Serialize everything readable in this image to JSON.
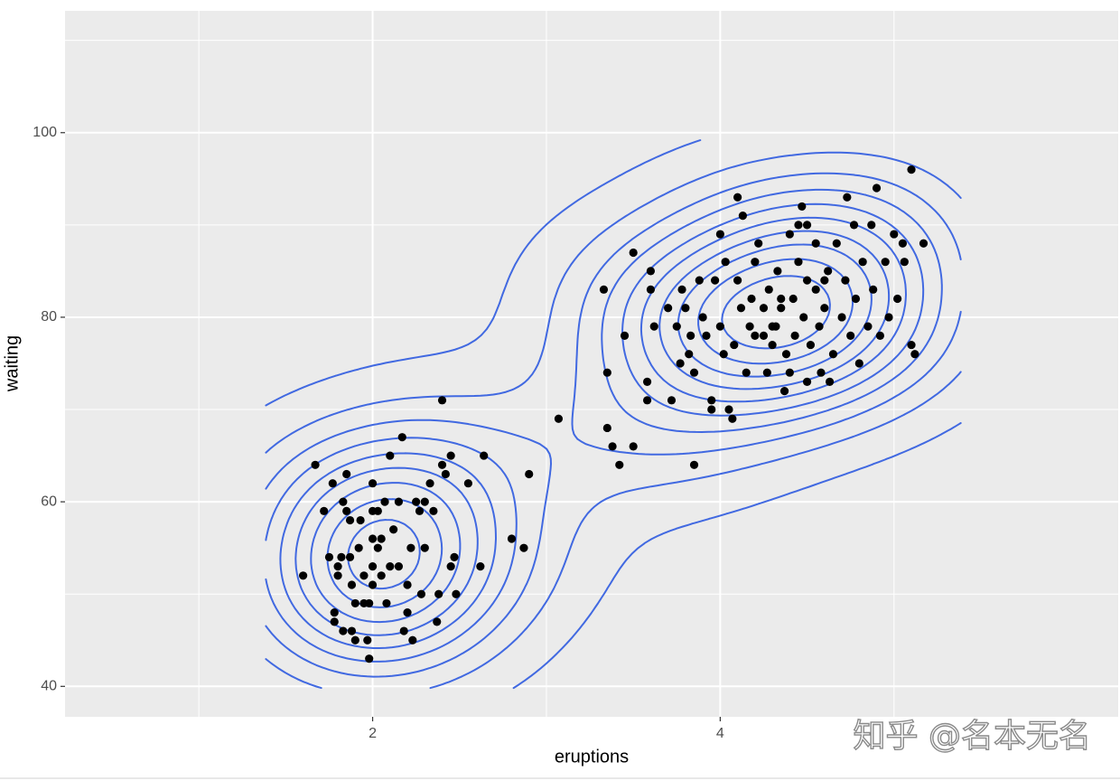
{
  "chart_data": {
    "type": "scatter",
    "xlabel": "eruptions",
    "ylabel": "waiting",
    "watermark": "知乎 @名本无名",
    "xlim": [
      0.23,
      6.29
    ],
    "ylim": [
      36.7,
      113.2
    ],
    "xticks": [
      2,
      4
    ],
    "yticks": [
      40,
      60,
      80,
      100
    ],
    "grid": true,
    "point_color": "#000000",
    "contour_color": "#4169e1",
    "x": [
      1.6,
      1.67,
      1.72,
      1.75,
      1.77,
      1.78,
      1.78,
      1.8,
      1.8,
      1.82,
      1.83,
      1.83,
      1.85,
      1.85,
      1.87,
      1.87,
      1.88,
      1.88,
      1.9,
      1.9,
      1.92,
      1.93,
      1.95,
      1.95,
      1.97,
      1.98,
      2.0,
      2.0,
      2.0,
      2.0,
      2.0,
      1.98,
      2.03,
      2.03,
      2.05,
      2.05,
      2.07,
      2.08,
      2.1,
      2.1,
      2.12,
      2.15,
      2.15,
      2.17,
      2.18,
      2.2,
      2.2,
      2.22,
      2.23,
      2.25,
      2.27,
      2.3,
      2.28,
      2.3,
      2.33,
      2.35,
      2.37,
      2.38,
      2.4,
      2.42,
      2.45,
      2.45,
      2.47,
      2.48,
      2.55,
      2.4,
      2.62,
      2.64,
      2.8,
      2.87,
      2.9,
      3.07,
      3.33,
      3.35,
      3.35,
      3.38,
      3.42,
      3.45,
      3.5,
      3.5,
      3.58,
      3.58,
      3.6,
      3.6,
      3.62,
      3.7,
      3.72,
      3.75,
      3.78,
      3.77,
      3.8,
      3.82,
      3.85,
      3.83,
      3.85,
      3.88,
      3.9,
      3.92,
      3.95,
      3.95,
      3.97,
      4.0,
      4.0,
      4.02,
      4.03,
      4.05,
      4.07,
      4.08,
      4.1,
      4.1,
      4.12,
      4.13,
      4.15,
      4.17,
      4.18,
      4.2,
      4.2,
      4.22,
      4.25,
      4.27,
      4.28,
      4.3,
      4.32,
      4.33,
      4.35,
      4.37,
      4.38,
      4.4,
      4.42,
      4.43,
      4.45,
      4.47,
      4.48,
      4.5,
      4.5,
      4.52,
      4.55,
      4.57,
      4.58,
      4.6,
      4.62,
      4.63,
      4.65,
      4.67,
      4.7,
      4.72,
      4.73,
      4.75,
      4.77,
      4.78,
      4.8,
      4.82,
      4.85,
      4.87,
      4.88,
      4.9,
      4.92,
      4.95,
      4.97,
      5.0,
      5.02,
      5.05,
      5.1,
      5.12,
      5.17,
      5.1,
      5.06,
      4.45,
      4.55,
      4.35,
      4.3,
      4.25,
      4.6,
      4.4,
      4.5
    ],
    "values": [
      52,
      64,
      59,
      54,
      62,
      48,
      47,
      52,
      53,
      54,
      60,
      46,
      63,
      59,
      58,
      54,
      51,
      46,
      49,
      45,
      55,
      58,
      49,
      52,
      45,
      49,
      51,
      53,
      56,
      59,
      62,
      43,
      55,
      59,
      52,
      56,
      60,
      49,
      53,
      65,
      57,
      60,
      53,
      67,
      46,
      48,
      51,
      55,
      45,
      60,
      59,
      60,
      50,
      55,
      62,
      59,
      47,
      50,
      64,
      63,
      53,
      65,
      54,
      50,
      62,
      71,
      53,
      65,
      56,
      55,
      63,
      69,
      83,
      74,
      68,
      66,
      64,
      78,
      87,
      66,
      71,
      73,
      85,
      83,
      79,
      81,
      71,
      79,
      83,
      75,
      81,
      76,
      74,
      78,
      64,
      84,
      80,
      78,
      70,
      71,
      84,
      79,
      89,
      76,
      86,
      70,
      69,
      77,
      84,
      93,
      81,
      91,
      74,
      79,
      82,
      78,
      86,
      88,
      81,
      74,
      83,
      77,
      79,
      85,
      81,
      72,
      76,
      89,
      82,
      78,
      86,
      92,
      80,
      84,
      90,
      77,
      83,
      79,
      74,
      81,
      85,
      73,
      76,
      88,
      80,
      84,
      93,
      78,
      90,
      82,
      75,
      86,
      79,
      90,
      83,
      94,
      78,
      86,
      80,
      89,
      82,
      88,
      77,
      76,
      88,
      96,
      86,
      90,
      88,
      82,
      79,
      78,
      84,
      74,
      73
    ]
  }
}
